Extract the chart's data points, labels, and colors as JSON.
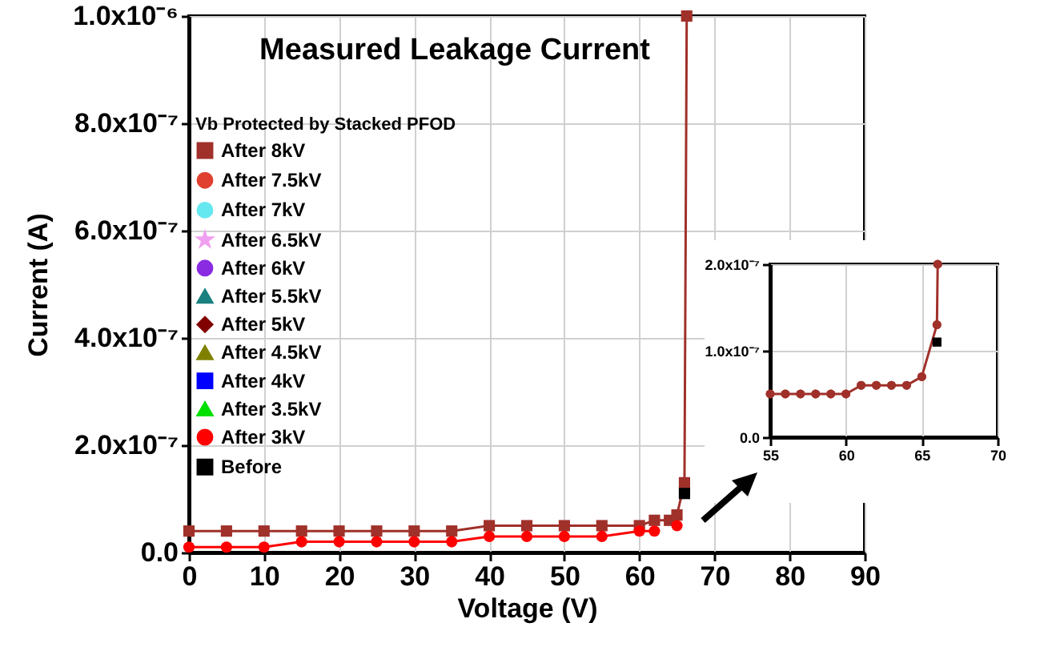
{
  "chart_data": [
    {
      "type": "line",
      "title": "Measured Leakage Current",
      "xlabel": "Voltage (V)",
      "ylabel": "Current (A)",
      "legend_title": "Vb Protected by Stacked PFOD",
      "x": [
        0,
        5,
        10,
        15,
        20,
        25,
        30,
        35,
        40,
        45,
        50,
        55,
        60,
        62,
        64,
        65,
        66,
        66.3
      ],
      "series": [
        {
          "name": "After 8kV",
          "color": "#a0302a",
          "marker": "square",
          "values": [
            4e-08,
            4e-08,
            4e-08,
            4e-08,
            4e-08,
            4e-08,
            4e-08,
            4e-08,
            5e-08,
            5e-08,
            5e-08,
            5e-08,
            5e-08,
            6e-08,
            6e-08,
            7e-08,
            1.3e-07,
            1e-06
          ]
        },
        {
          "name": "After 7.5kV",
          "color": "#e04030",
          "marker": "circle",
          "values": [
            null,
            null,
            null,
            null,
            null,
            null,
            null,
            null,
            null,
            null,
            null,
            null,
            null,
            null,
            null,
            null,
            null,
            null
          ]
        },
        {
          "name": "After 7kV",
          "color": "#66e8f0",
          "marker": "circle",
          "values": [
            null,
            null,
            null,
            null,
            null,
            null,
            null,
            null,
            null,
            null,
            null,
            null,
            null,
            null,
            null,
            null,
            null,
            null
          ]
        },
        {
          "name": "After 6.5kV",
          "color": "#f0a0f0",
          "marker": "star",
          "values": [
            null,
            null,
            null,
            null,
            null,
            null,
            null,
            null,
            null,
            null,
            null,
            null,
            null,
            null,
            null,
            null,
            null,
            null
          ]
        },
        {
          "name": "After 6kV",
          "color": "#8a2be2",
          "marker": "circle",
          "values": [
            null,
            null,
            null,
            null,
            null,
            null,
            null,
            null,
            null,
            null,
            null,
            null,
            null,
            null,
            null,
            null,
            null,
            null
          ]
        },
        {
          "name": "After 5.5kV",
          "color": "#1a8080",
          "marker": "triangle",
          "values": [
            null,
            null,
            null,
            null,
            null,
            null,
            null,
            null,
            null,
            null,
            null,
            null,
            null,
            null,
            null,
            null,
            null,
            null
          ]
        },
        {
          "name": "After 5kV",
          "color": "#800000",
          "marker": "diamond",
          "values": [
            null,
            null,
            null,
            null,
            null,
            null,
            null,
            null,
            null,
            null,
            null,
            null,
            null,
            null,
            null,
            null,
            null,
            null
          ]
        },
        {
          "name": "After 4.5kV",
          "color": "#808000",
          "marker": "triangle",
          "values": [
            null,
            null,
            null,
            null,
            null,
            null,
            null,
            null,
            null,
            null,
            null,
            null,
            null,
            null,
            null,
            null,
            null,
            null
          ]
        },
        {
          "name": "After 4kV",
          "color": "#0000ff",
          "marker": "square",
          "values": [
            null,
            null,
            null,
            null,
            null,
            null,
            null,
            null,
            null,
            null,
            null,
            null,
            null,
            null,
            null,
            null,
            null,
            null
          ]
        },
        {
          "name": "After 3.5kV",
          "color": "#00e000",
          "marker": "triangle",
          "values": [
            null,
            null,
            null,
            null,
            null,
            null,
            null,
            null,
            null,
            null,
            null,
            null,
            null,
            null,
            null,
            null,
            null,
            null
          ]
        },
        {
          "name": "After 3kV",
          "color": "#ff0000",
          "marker": "circle",
          "values": [
            1e-08,
            1e-08,
            1e-08,
            2e-08,
            2e-08,
            2e-08,
            2e-08,
            2e-08,
            3e-08,
            3e-08,
            3e-08,
            3e-08,
            4e-08,
            4e-08,
            null,
            5e-08,
            null,
            null
          ]
        },
        {
          "name": "Before",
          "color": "#000000",
          "marker": "square",
          "values": [
            null,
            null,
            null,
            null,
            null,
            null,
            null,
            null,
            null,
            null,
            null,
            null,
            null,
            null,
            null,
            null,
            1.1e-07,
            null
          ]
        }
      ],
      "xlim": [
        0,
        90
      ],
      "xticks": [
        0,
        10,
        20,
        30,
        40,
        50,
        60,
        70,
        80,
        90
      ],
      "ylim": [
        0,
        1e-06
      ],
      "yticks": [
        {
          "value": 0,
          "label": "0.0"
        },
        {
          "value": 2e-07,
          "label": "2.0x10⁻⁷"
        },
        {
          "value": 4e-07,
          "label": "4.0x10⁻⁷"
        },
        {
          "value": 6e-07,
          "label": "6.0x10⁻⁷"
        },
        {
          "value": 8e-07,
          "label": "8.0x10⁻⁷"
        },
        {
          "value": 1e-06,
          "label": "1.0x10⁻⁶"
        }
      ],
      "grid": true,
      "legend": "left",
      "line_style": "solid"
    },
    {
      "type": "line",
      "series": [
        {
          "color": "#a0302a",
          "marker": "circle",
          "x": [
            55,
            56,
            57,
            58,
            59,
            60,
            61,
            62,
            63,
            64,
            65,
            66,
            66.05
          ],
          "values": [
            5e-08,
            5e-08,
            5e-08,
            5e-08,
            5e-08,
            5e-08,
            6e-08,
            6e-08,
            6e-08,
            6e-08,
            7e-08,
            1.3e-07,
            2e-07
          ]
        },
        {
          "color": "#000000",
          "marker": "square",
          "x": [
            66
          ],
          "values": [
            1.1e-07
          ]
        }
      ],
      "xlim": [
        55,
        70
      ],
      "xticks": [
        55,
        60,
        65,
        70
      ],
      "ylim": [
        0,
        2e-07
      ],
      "yticks": [
        {
          "value": 0,
          "label": "0.0"
        },
        {
          "value": 1e-07,
          "label": "1.0x10⁻⁷"
        },
        {
          "value": 2e-07,
          "label": "2.0x10⁻⁷"
        }
      ],
      "grid": true,
      "line_style": "solid"
    }
  ]
}
